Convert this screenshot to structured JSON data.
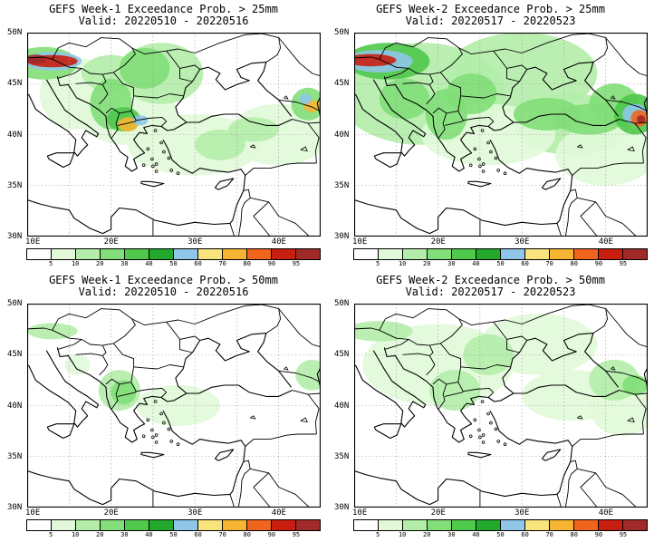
{
  "panels": [
    {
      "line1": "GEFS Week-1 Exceedance Prob. > 25mm",
      "line2": "Valid: 20220510 - 20220516"
    },
    {
      "line1": "GEFS Week-2 Exceedance Prob. > 25mm",
      "line2": "Valid: 20220517 - 20220523"
    },
    {
      "line1": "GEFS Week-1 Exceedance Prob. > 50mm",
      "line2": "Valid: 20220510 - 20220516"
    },
    {
      "line1": "GEFS Week-2 Exceedance Prob. > 50mm",
      "line2": "Valid: 20220517 - 20220523"
    }
  ],
  "axes": {
    "lat_labels": [
      "50N",
      "45N",
      "40N",
      "35N",
      "30N"
    ],
    "lon_labels": [
      "10E",
      "20E",
      "30E",
      "40E"
    ]
  },
  "colorbar": {
    "labels": [
      "5",
      "10",
      "20",
      "30",
      "40",
      "50",
      "60",
      "70",
      "80",
      "90",
      "95"
    ],
    "colors": [
      "#ffffff",
      "#e1f9d8",
      "#b4edaa",
      "#82de78",
      "#4fc84b",
      "#22a82a",
      "#8fc6ea",
      "#f8e37d",
      "#f5b533",
      "#f0641e",
      "#c81e0f",
      "#a02a2a"
    ]
  }
}
